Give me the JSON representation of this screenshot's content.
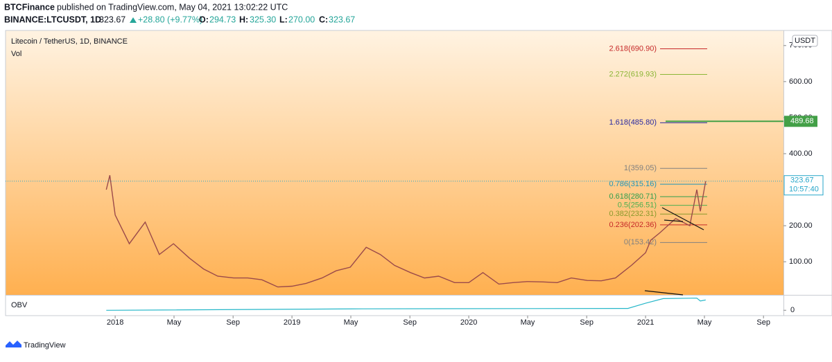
{
  "header": {
    "publisher": "BTCFinance",
    "published": "published on TradingView.com, May 04, 2021 13:02:22 UTC",
    "symbol": "BINANCE:LTCUSDT, 1D",
    "price": "323.67",
    "change": "+28.80 (+9.77%)",
    "o_label": "O:",
    "o": "294.73",
    "h_label": "H:",
    "h": "325.30",
    "l_label": "L:",
    "l": "270.00",
    "c_label": "C:",
    "c": "323.67"
  },
  "chart_data": {
    "type": "line",
    "title": "Litecoin / TetherUS, 1D, BINANCE",
    "volume_label": "Vol",
    "currency": "USDT",
    "xlim": [
      2017.38,
      2021.78
    ],
    "ylim": [
      10,
      740
    ],
    "xticks": [
      {
        "value": 2018,
        "label": "2018"
      },
      {
        "value": 2018.333,
        "label": "May"
      },
      {
        "value": 2018.667,
        "label": "Sep"
      },
      {
        "value": 2019,
        "label": "2019"
      },
      {
        "value": 2019.333,
        "label": "May"
      },
      {
        "value": 2019.667,
        "label": "Sep"
      },
      {
        "value": 2020,
        "label": "2020"
      },
      {
        "value": 2020.333,
        "label": "May"
      },
      {
        "value": 2020.667,
        "label": "Sep"
      },
      {
        "value": 2021,
        "label": "2021"
      },
      {
        "value": 2021.333,
        "label": "May"
      },
      {
        "value": 2021.667,
        "label": "Sep"
      }
    ],
    "yticks": [
      {
        "value": 100,
        "label": "100.00"
      },
      {
        "value": 200,
        "label": "200.00"
      },
      {
        "value": 400,
        "label": "400.00"
      },
      {
        "value": 500,
        "label": "500.00"
      },
      {
        "value": 600,
        "label": "600.00"
      },
      {
        "value": 700,
        "label": "700.00"
      }
    ],
    "series": [
      {
        "name": "LTCUSDT",
        "color": "#9b4a4a",
        "x": [
          2017.95,
          2017.97,
          2018.0,
          2018.08,
          2018.17,
          2018.25,
          2018.33,
          2018.42,
          2018.5,
          2018.58,
          2018.67,
          2018.75,
          2018.83,
          2018.92,
          2019.0,
          2019.08,
          2019.17,
          2019.25,
          2019.33,
          2019.42,
          2019.5,
          2019.58,
          2019.67,
          2019.75,
          2019.83,
          2019.92,
          2020.0,
          2020.08,
          2020.17,
          2020.25,
          2020.33,
          2020.42,
          2020.5,
          2020.58,
          2020.67,
          2020.75,
          2020.83,
          2020.92,
          2021.0,
          2021.03,
          2021.08,
          2021.17,
          2021.25,
          2021.29,
          2021.31,
          2021.34
        ],
        "values": [
          300,
          340,
          230,
          150,
          210,
          120,
          150,
          110,
          80,
          60,
          55,
          55,
          50,
          30,
          32,
          40,
          55,
          75,
          85,
          140,
          120,
          90,
          70,
          55,
          60,
          42,
          42,
          70,
          38,
          42,
          45,
          44,
          42,
          55,
          48,
          47,
          55,
          90,
          125,
          160,
          180,
          220,
          200,
          300,
          240,
          323.67
        ]
      }
    ],
    "last_price": 323.67,
    "countdown": "10:57:40",
    "last_color": "#26a6c9",
    "alert_price": 489.68,
    "alert_color": "#43a047",
    "fib_levels": [
      {
        "label": "2.618(690.90)",
        "value": 690.9,
        "color": "#c62828"
      },
      {
        "label": "2.272(619.93)",
        "value": 619.93,
        "color": "#8bb535"
      },
      {
        "label": "1.618(485.80)",
        "value": 485.8,
        "color": "#2a2aa0"
      },
      {
        "label": "1(359.05)",
        "value": 359.05,
        "color": "#808080"
      },
      {
        "label": "0.786(315.16)",
        "value": 315.16,
        "color": "#1f95b8"
      },
      {
        "label": "0.618(280.71)",
        "value": 280.71,
        "color": "#2e9e4e"
      },
      {
        "label": "0.5(256.51)",
        "value": 256.51,
        "color": "#4caf50"
      },
      {
        "label": "0.382(232.31)",
        "value": 232.31,
        "color": "#8a9a2b"
      },
      {
        "label": "0.236(202.36)",
        "value": 202.36,
        "color": "#c62828"
      },
      {
        "label": "0(153.42)",
        "value": 153.42,
        "color": "#808080"
      }
    ],
    "obv": {
      "label": "OBV",
      "color": "#26b7c9",
      "ylim": [
        -1,
        3
      ],
      "yticks": [
        0
      ],
      "x": [
        2017.95,
        2019.4,
        2020.9,
        2021.0,
        2021.1,
        2021.29,
        2021.31,
        2021.34
      ],
      "values": [
        0,
        0.3,
        0.4,
        1.5,
        2.5,
        2.6,
        2.0,
        2.2
      ]
    }
  },
  "footer": {
    "brand": "TradingView"
  }
}
